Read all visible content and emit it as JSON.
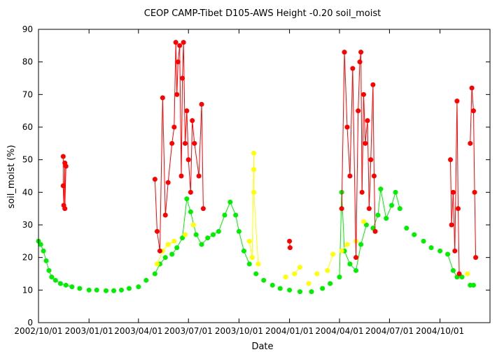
{
  "chart_data": {
    "type": "scatter",
    "title": "CEOP CAMP-Tibet D105-AWS Height -0.20 soil_moist",
    "xlabel": "Date",
    "ylabel": "soil_moist (%)",
    "x_ticks": [
      "2002/10/01",
      "2003/01/01",
      "2003/04/01",
      "2003/07/01",
      "2003/10/01",
      "2004/01/01",
      "2004/04/01",
      "2004/07/01",
      "2004/10/01"
    ],
    "x_range": [
      "2002/10/01",
      "2004/12/31"
    ],
    "ylim": [
      0,
      90
    ],
    "y_ticks": [
      0,
      10,
      20,
      30,
      40,
      50,
      60,
      70,
      80,
      90
    ],
    "grid": false,
    "legend": "none",
    "colors": {
      "green": "#00ee00",
      "yellow": "#ffff00",
      "red": "#ff0000"
    },
    "series": [
      {
        "color": "green",
        "points": [
          [
            "2002/10/01",
            25
          ],
          [
            "2002/10/05",
            24
          ],
          [
            "2002/10/10",
            22
          ],
          [
            "2002/10/15",
            19
          ],
          [
            "2002/10/20",
            16
          ],
          [
            "2002/10/25",
            14
          ],
          [
            "2002/11/01",
            13
          ],
          [
            "2002/11/10",
            12
          ],
          [
            "2002/11/20",
            11.5
          ],
          [
            "2002/12/01",
            11
          ],
          [
            "2002/12/15",
            10.5
          ],
          [
            "2003/01/01",
            10
          ],
          [
            "2003/01/15",
            10
          ],
          [
            "2003/02/01",
            9.8
          ],
          [
            "2003/02/15",
            9.8
          ],
          [
            "2003/03/01",
            10
          ],
          [
            "2003/03/15",
            10.5
          ],
          [
            "2003/04/01",
            11
          ],
          [
            "2003/04/15",
            13
          ],
          [
            "2003/05/01",
            15
          ],
          [
            "2003/05/10",
            18
          ],
          [
            "2003/05/20",
            20
          ],
          [
            "2003/06/01",
            21
          ],
          [
            "2003/06/10",
            23
          ],
          [
            "2003/06/20",
            26
          ],
          [
            "2003/06/28",
            38
          ],
          [
            "2003/07/05",
            34
          ],
          [
            "2003/07/15",
            27
          ],
          [
            "2003/07/25",
            24
          ],
          [
            "2003/08/05",
            26
          ],
          [
            "2003/08/15",
            27
          ],
          [
            "2003/08/25",
            28
          ],
          [
            "2003/09/05",
            33
          ],
          [
            "2003/09/15",
            37
          ],
          [
            "2003/09/25",
            33
          ],
          [
            "2003/10/01",
            28
          ],
          [
            "2003/10/10",
            22
          ],
          [
            "2003/10/20",
            18
          ],
          [
            "2003/11/01",
            15
          ],
          [
            "2003/11/15",
            13
          ],
          [
            "2003/12/01",
            11.5
          ],
          [
            "2003/12/15",
            10.5
          ],
          [
            "2004/01/01",
            10
          ],
          [
            "2004/01/20",
            9.5
          ],
          [
            "2004/02/10",
            9.5
          ],
          [
            "2004/03/01",
            10.5
          ],
          [
            "2004/03/15",
            12
          ],
          [
            "2004/04/01",
            14
          ],
          [
            "2004/04/05",
            40
          ],
          [
            "2004/04/10",
            22
          ],
          [
            "2004/04/20",
            18
          ],
          [
            "2004/05/01",
            16
          ],
          [
            "2004/05/10",
            24
          ],
          [
            "2004/05/20",
            30
          ],
          [
            "2004/06/01",
            29
          ],
          [
            "2004/06/10",
            33
          ],
          [
            "2004/06/15",
            41
          ],
          [
            "2004/06/25",
            32
          ],
          [
            "2004/07/05",
            36
          ],
          [
            "2004/07/12",
            40
          ],
          [
            "2004/07/20",
            35
          ],
          [
            "2004/08/01",
            29
          ],
          [
            "2004/08/15",
            27
          ],
          [
            "2004/09/01",
            25
          ],
          [
            "2004/09/15",
            23
          ],
          [
            "2004/10/01",
            22
          ],
          [
            "2004/10/15",
            21
          ],
          [
            "2004/10/25",
            16
          ],
          [
            "2004/11/01",
            14
          ],
          [
            "2004/11/10",
            14
          ],
          [
            "2004/11/25",
            11.5
          ],
          [
            "2004/12/01",
            11.5
          ]
        ]
      },
      {
        "color": "yellow",
        "points": [
          [
            "2003/05/05",
            18
          ],
          [
            "2003/05/15",
            22
          ],
          [
            "2003/05/25",
            24
          ],
          [
            "2003/06/05",
            25
          ],
          [
            "2003/06/25",
            27
          ],
          [
            "2003/07/10",
            30
          ],
          [
            "2003/10/20",
            25
          ],
          [
            "2003/10/25",
            20
          ],
          [
            "2003/10/28",
            52
          ],
          [
            "2003/10/28",
            47
          ],
          [
            "2003/10/28",
            40
          ],
          [
            "2003/11/05",
            18
          ],
          [
            "2003/12/25",
            14
          ],
          [
            "2004/01/10",
            15
          ],
          [
            "2004/01/20",
            17
          ],
          [
            "2004/02/05",
            12
          ],
          [
            "2004/02/20",
            15
          ],
          [
            "2004/03/10",
            16
          ],
          [
            "2004/03/20",
            21
          ],
          [
            "2004/04/05",
            22
          ],
          [
            "2004/04/15",
            24
          ],
          [
            "2004/05/01",
            25
          ],
          [
            "2004/05/15",
            31
          ],
          [
            "2004/11/20",
            15
          ]
        ]
      },
      {
        "color": "red",
        "points": [
          [
            "2002/11/15",
            51
          ],
          [
            "2002/11/15",
            42
          ],
          [
            "2002/11/16",
            36
          ],
          [
            "2002/11/18",
            49
          ],
          [
            "2002/11/18",
            35
          ],
          [
            "2002/11/20",
            48
          ],
          [
            "2003/05/01",
            44
          ],
          [
            "2003/05/05",
            28
          ],
          [
            "2003/05/10",
            22
          ],
          [
            "2003/05/15",
            69
          ],
          [
            "2003/05/20",
            33
          ],
          [
            "2003/05/25",
            43
          ],
          [
            "2003/06/01",
            55
          ],
          [
            "2003/06/05",
            60
          ],
          [
            "2003/06/08",
            86
          ],
          [
            "2003/06/10",
            70
          ],
          [
            "2003/06/12",
            80
          ],
          [
            "2003/06/15",
            85
          ],
          [
            "2003/06/18",
            45
          ],
          [
            "2003/06/20",
            75
          ],
          [
            "2003/06/22",
            86
          ],
          [
            "2003/06/25",
            55
          ],
          [
            "2003/06/28",
            65
          ],
          [
            "2003/07/01",
            50
          ],
          [
            "2003/07/05",
            40
          ],
          [
            "2003/07/08",
            62
          ],
          [
            "2003/07/12",
            55
          ],
          [
            "2003/07/20",
            45
          ],
          [
            "2003/07/25",
            67
          ],
          [
            "2003/07/28",
            35
          ],
          [
            "2004/01/01",
            25
          ],
          [
            "2004/01/02",
            23
          ],
          [
            "2004/04/05",
            35
          ],
          [
            "2004/04/10",
            83
          ],
          [
            "2004/04/15",
            60
          ],
          [
            "2004/04/20",
            45
          ],
          [
            "2004/04/25",
            78
          ],
          [
            "2004/05/01",
            20
          ],
          [
            "2004/05/05",
            65
          ],
          [
            "2004/05/08",
            80
          ],
          [
            "2004/05/10",
            83
          ],
          [
            "2004/05/12",
            40
          ],
          [
            "2004/05/15",
            70
          ],
          [
            "2004/05/18",
            55
          ],
          [
            "2004/05/22",
            62
          ],
          [
            "2004/05/25",
            35
          ],
          [
            "2004/05/28",
            50
          ],
          [
            "2004/06/01",
            73
          ],
          [
            "2004/06/03",
            45
          ],
          [
            "2004/06/05",
            28
          ],
          [
            "2004/10/20",
            50
          ],
          [
            "2004/10/22",
            30
          ],
          [
            "2004/10/25",
            40
          ],
          [
            "2004/10/28",
            22
          ],
          [
            "2004/11/01",
            68
          ],
          [
            "2004/11/03",
            35
          ],
          [
            "2004/11/05",
            15
          ],
          [
            "2004/11/25",
            55
          ],
          [
            "2004/11/28",
            72
          ],
          [
            "2004/12/01",
            65
          ],
          [
            "2004/12/03",
            40
          ],
          [
            "2004/12/05",
            20
          ]
        ]
      }
    ]
  }
}
